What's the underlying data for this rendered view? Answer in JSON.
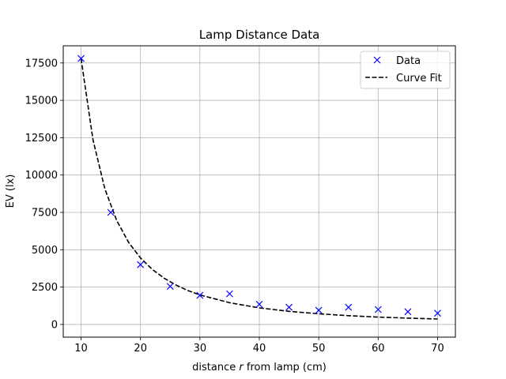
{
  "chart_data": {
    "type": "scatter",
    "title": "Lamp Distance Data",
    "xlabel_prefix": "distance ",
    "xlabel_var": "r",
    "xlabel_suffix": " from lamp (cm)",
    "ylabel": "EV (lx)",
    "xlim": [
      7,
      73
    ],
    "ylim": [
      -850,
      18650
    ],
    "xticks": [
      10,
      20,
      30,
      40,
      50,
      60,
      70
    ],
    "yticks": [
      0,
      2500,
      5000,
      7500,
      10000,
      12500,
      15000,
      17500
    ],
    "grid": true,
    "legend_position": "top-right",
    "series": [
      {
        "name": "Data",
        "marker": "x",
        "color": "#0000ff",
        "x": [
          10,
          15,
          20,
          25,
          30,
          35,
          40,
          45,
          50,
          55,
          60,
          65,
          70
        ],
        "y": [
          17800,
          7500,
          4000,
          2550,
          1950,
          2050,
          1350,
          1150,
          950,
          1150,
          1000,
          850,
          750
        ]
      },
      {
        "name": "Curve Fit",
        "line_style": "dashed",
        "color": "#000000",
        "x": [
          10,
          12,
          14,
          16,
          18,
          20,
          22,
          24,
          26,
          28,
          30,
          35,
          40,
          45,
          50,
          55,
          60,
          65,
          70
        ],
        "y": [
          17800,
          12361,
          9082,
          6953,
          5494,
          4450,
          3678,
          3090,
          2633,
          2270,
          1978,
          1453,
          1113,
          879,
          712,
          588,
          494,
          421,
          363
        ]
      }
    ]
  }
}
